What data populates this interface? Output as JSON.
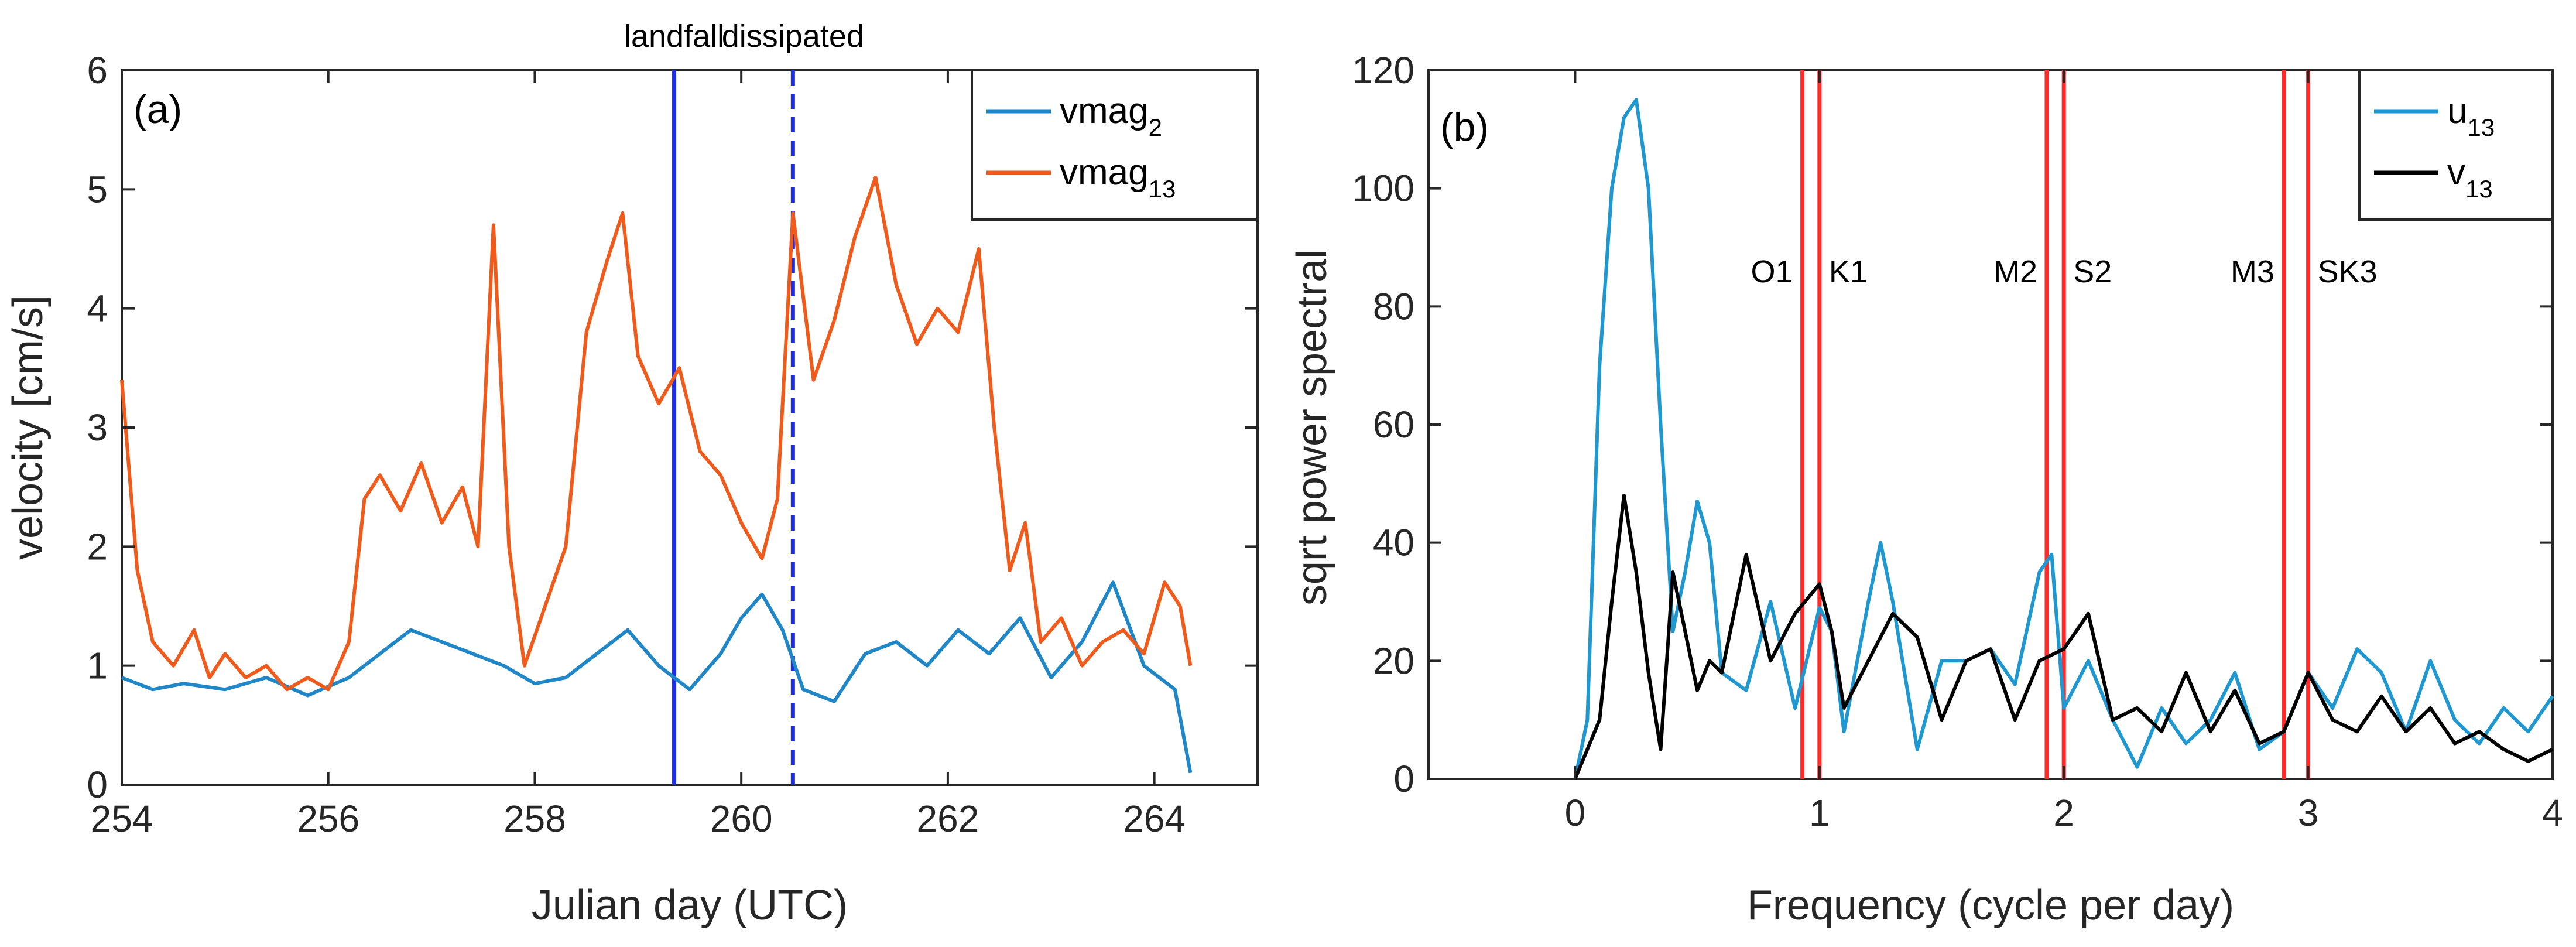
{
  "chart_data": [
    {
      "type": "line",
      "panel_label": "(a)",
      "xlabel": "Julian day (UTC)",
      "ylabel": "velocity [cm/s]",
      "xlim": [
        254,
        265
      ],
      "ylim": [
        0,
        6
      ],
      "xticks": [
        "254",
        "256",
        "258",
        "260",
        "262",
        "264"
      ],
      "yticks": [
        "0",
        "1",
        "2",
        "3",
        "4",
        "5",
        "6"
      ],
      "grid": false,
      "legend_position": "top-right",
      "events": [
        {
          "label": "landfall",
          "x": 259.35,
          "style": "solid",
          "color": "#1f2fe0"
        },
        {
          "label": "dissipated",
          "x": 260.5,
          "style": "dashed",
          "color": "#1f2fe0"
        }
      ],
      "series": [
        {
          "name": "vmag",
          "subscript": "2",
          "color": "#1f86c7",
          "x": [
            254,
            254.3,
            254.6,
            255,
            255.4,
            255.8,
            256.2,
            256.5,
            256.8,
            257.1,
            257.4,
            257.7,
            258,
            258.3,
            258.6,
            258.9,
            259.2,
            259.5,
            259.8,
            260,
            260.2,
            260.4,
            260.6,
            260.9,
            261.2,
            261.5,
            261.8,
            262.1,
            262.4,
            262.7,
            263,
            263.3,
            263.6,
            263.9,
            264.2,
            264.35
          ],
          "values": [
            0.9,
            0.8,
            0.85,
            0.8,
            0.9,
            0.75,
            0.9,
            1.1,
            1.3,
            1.2,
            1.1,
            1.0,
            0.85,
            0.9,
            1.1,
            1.3,
            1.0,
            0.8,
            1.1,
            1.4,
            1.6,
            1.3,
            0.8,
            0.7,
            1.1,
            1.2,
            1.0,
            1.3,
            1.1,
            1.4,
            0.9,
            1.2,
            1.7,
            1.0,
            0.8,
            0.1
          ]
        },
        {
          "name": "vmag",
          "subscript": "13",
          "color": "#f05a1a",
          "x": [
            254,
            254.15,
            254.3,
            254.5,
            254.7,
            254.85,
            255,
            255.2,
            255.4,
            255.6,
            255.8,
            256,
            256.2,
            256.35,
            256.5,
            256.7,
            256.9,
            257.1,
            257.3,
            257.45,
            257.6,
            257.75,
            257.9,
            258.1,
            258.3,
            258.5,
            258.7,
            258.85,
            259,
            259.2,
            259.4,
            259.6,
            259.8,
            260,
            260.2,
            260.35,
            260.5,
            260.7,
            260.9,
            261.1,
            261.3,
            261.5,
            261.7,
            261.9,
            262.1,
            262.3,
            262.45,
            262.6,
            262.75,
            262.9,
            263.1,
            263.3,
            263.5,
            263.7,
            263.9,
            264.1,
            264.25,
            264.35
          ],
          "values": [
            3.4,
            1.8,
            1.2,
            1.0,
            1.3,
            0.9,
            1.1,
            0.9,
            1.0,
            0.8,
            0.9,
            0.8,
            1.2,
            2.4,
            2.6,
            2.3,
            2.7,
            2.2,
            2.5,
            2.0,
            4.7,
            2.0,
            1.0,
            1.5,
            2.0,
            3.8,
            4.4,
            4.8,
            3.6,
            3.2,
            3.5,
            2.8,
            2.6,
            2.2,
            1.9,
            2.4,
            4.8,
            3.4,
            3.9,
            4.6,
            5.1,
            4.2,
            3.7,
            4.0,
            3.8,
            4.5,
            3.0,
            1.8,
            2.2,
            1.2,
            1.4,
            1.0,
            1.2,
            1.3,
            1.1,
            1.7,
            1.5,
            1.0
          ]
        }
      ]
    },
    {
      "type": "line",
      "panel_label": "(b)",
      "xlabel": "Frequency (cycle per day)",
      "ylabel": "sqrt power spectral",
      "xlim": [
        -0.6,
        4
      ],
      "ylim": [
        0,
        120
      ],
      "xticks": [
        "0",
        "1",
        "2",
        "3",
        "4"
      ],
      "yticks": [
        "0",
        "20",
        "40",
        "60",
        "80",
        "100",
        "120"
      ],
      "grid": false,
      "legend_position": "top-right",
      "tidal_lines": [
        {
          "label": "O1",
          "freq": 0.93
        },
        {
          "label": "K1",
          "freq": 1.0
        },
        {
          "label": "M2",
          "freq": 1.93
        },
        {
          "label": "S2",
          "freq": 2.0
        },
        {
          "label": "M3",
          "freq": 2.9
        },
        {
          "label": "SK3",
          "freq": 3.0
        }
      ],
      "series": [
        {
          "name": "u",
          "subscript": "13",
          "color": "#1f97d0",
          "x": [
            0,
            0.05,
            0.1,
            0.15,
            0.2,
            0.25,
            0.3,
            0.35,
            0.4,
            0.45,
            0.5,
            0.55,
            0.6,
            0.7,
            0.8,
            0.9,
            1.0,
            1.05,
            1.1,
            1.2,
            1.25,
            1.3,
            1.4,
            1.5,
            1.6,
            1.7,
            1.8,
            1.9,
            1.95,
            2.0,
            2.1,
            2.2,
            2.3,
            2.4,
            2.5,
            2.6,
            2.7,
            2.8,
            2.9,
            3.0,
            3.1,
            3.2,
            3.3,
            3.4,
            3.5,
            3.6,
            3.7,
            3.8,
            3.9,
            4.0
          ],
          "values": [
            0,
            10,
            70,
            100,
            112,
            115,
            100,
            60,
            25,
            35,
            47,
            40,
            18,
            15,
            30,
            12,
            29,
            25,
            8,
            30,
            40,
            30,
            5,
            20,
            20,
            22,
            16,
            35,
            38,
            12,
            20,
            10,
            2,
            12,
            6,
            10,
            18,
            5,
            8,
            18,
            12,
            22,
            18,
            8,
            20,
            10,
            6,
            12,
            8,
            14
          ]
        },
        {
          "name": "v",
          "subscript": "13",
          "color": "#000000",
          "x": [
            0,
            0.05,
            0.1,
            0.15,
            0.2,
            0.25,
            0.3,
            0.35,
            0.4,
            0.45,
            0.5,
            0.55,
            0.6,
            0.7,
            0.8,
            0.9,
            1.0,
            1.05,
            1.1,
            1.2,
            1.3,
            1.4,
            1.5,
            1.6,
            1.7,
            1.8,
            1.9,
            2.0,
            2.1,
            2.2,
            2.3,
            2.4,
            2.5,
            2.6,
            2.7,
            2.8,
            2.9,
            3.0,
            3.1,
            3.2,
            3.3,
            3.4,
            3.5,
            3.6,
            3.7,
            3.8,
            3.9,
            4.0
          ],
          "values": [
            0,
            5,
            10,
            30,
            48,
            35,
            18,
            5,
            35,
            25,
            15,
            20,
            18,
            38,
            20,
            28,
            33,
            25,
            12,
            20,
            28,
            24,
            10,
            20,
            22,
            10,
            20,
            22,
            28,
            10,
            12,
            8,
            18,
            8,
            15,
            6,
            8,
            18,
            10,
            8,
            14,
            8,
            12,
            6,
            8,
            5,
            3,
            5
          ]
        }
      ]
    }
  ]
}
